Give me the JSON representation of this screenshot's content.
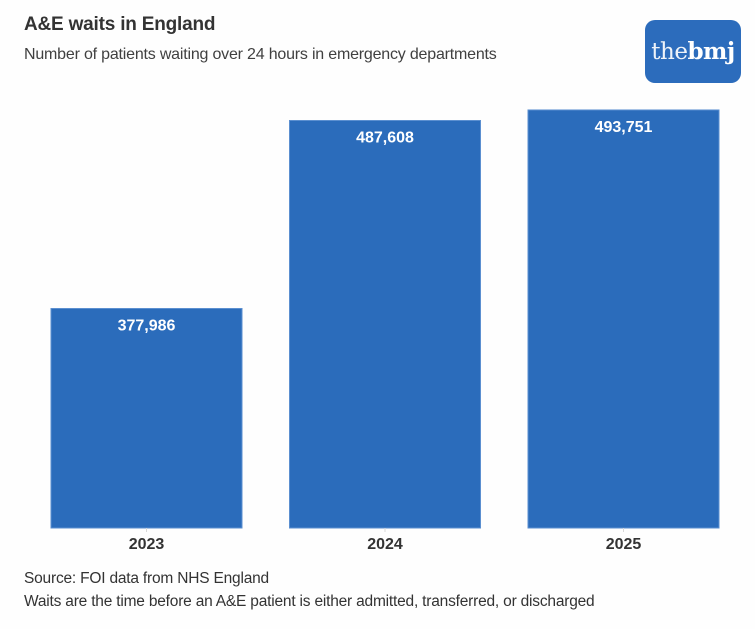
{
  "header": {
    "title": "A&E waits in England",
    "subtitle": "Number of patients waiting over 24 hours in emergency departments"
  },
  "logo": {
    "text_light": "the",
    "text_bold": "bmj",
    "color": "#2c6cbc"
  },
  "footer": {
    "source": "Source: FOI data from NHS England",
    "note": "Waits are the time before an A&E patient is either admitted, transferred, or discharged"
  },
  "chart_data": {
    "type": "bar",
    "title": "A&E waits in England",
    "subtitle": "Number of patients waiting over 24 hours in emergency departments",
    "categories": [
      "2023",
      "2024",
      "2025"
    ],
    "values": [
      377986,
      487608,
      493751
    ],
    "value_labels": [
      "377,986",
      "487,608",
      "493,751"
    ],
    "xlabel": "",
    "ylabel": "",
    "ylim": [
      250000,
      500000
    ],
    "y_axis_visible": false,
    "grid": false,
    "legend": "none",
    "bar_color": "#2b6cbb",
    "label_position": "inside-top",
    "source": "Source: FOI data from NHS England",
    "note": "Waits are the time before an A&E patient is either admitted, transferred, or discharged"
  }
}
